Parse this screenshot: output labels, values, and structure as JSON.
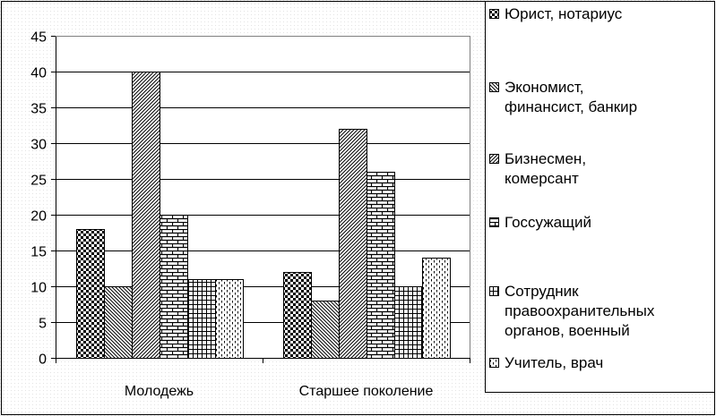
{
  "chart_data": {
    "type": "bar",
    "categories": [
      "Молодежь",
      "Старшее поколение"
    ],
    "series": [
      {
        "name": "Юрист, нотариус",
        "values": [
          18,
          12
        ],
        "pattern": "checker"
      },
      {
        "name": "Экономист, финансист, банкир",
        "values": [
          10,
          8
        ],
        "pattern": "diag-down"
      },
      {
        "name": "Бизнесмен, комерсант",
        "values": [
          40,
          32
        ],
        "pattern": "diag-up"
      },
      {
        "name": "Госсужащий",
        "values": [
          20,
          26
        ],
        "pattern": "brick"
      },
      {
        "name": "Сотрудник правоохранительных органов, военный",
        "values": [
          11,
          10
        ],
        "pattern": "grid"
      },
      {
        "name": "Учитель, врач",
        "values": [
          11,
          14
        ],
        "pattern": "dashes"
      }
    ],
    "legend_lines": [
      [
        "Юрист, нотариус"
      ],
      [
        "Экономист,",
        "финансист, банкир"
      ],
      [
        "Бизнесмен,",
        "комерсант"
      ],
      [
        "Госсужащий"
      ],
      [
        "Сотрудник",
        "правоохранительных",
        "органов, военный"
      ],
      [
        "Учитель, врач"
      ]
    ],
    "ylim": [
      0,
      45
    ],
    "yticks": [
      0,
      5,
      10,
      15,
      20,
      25,
      30,
      35,
      40,
      45
    ],
    "grid": true,
    "legend_position": "right",
    "title": "",
    "xlabel": "",
    "ylabel": ""
  }
}
